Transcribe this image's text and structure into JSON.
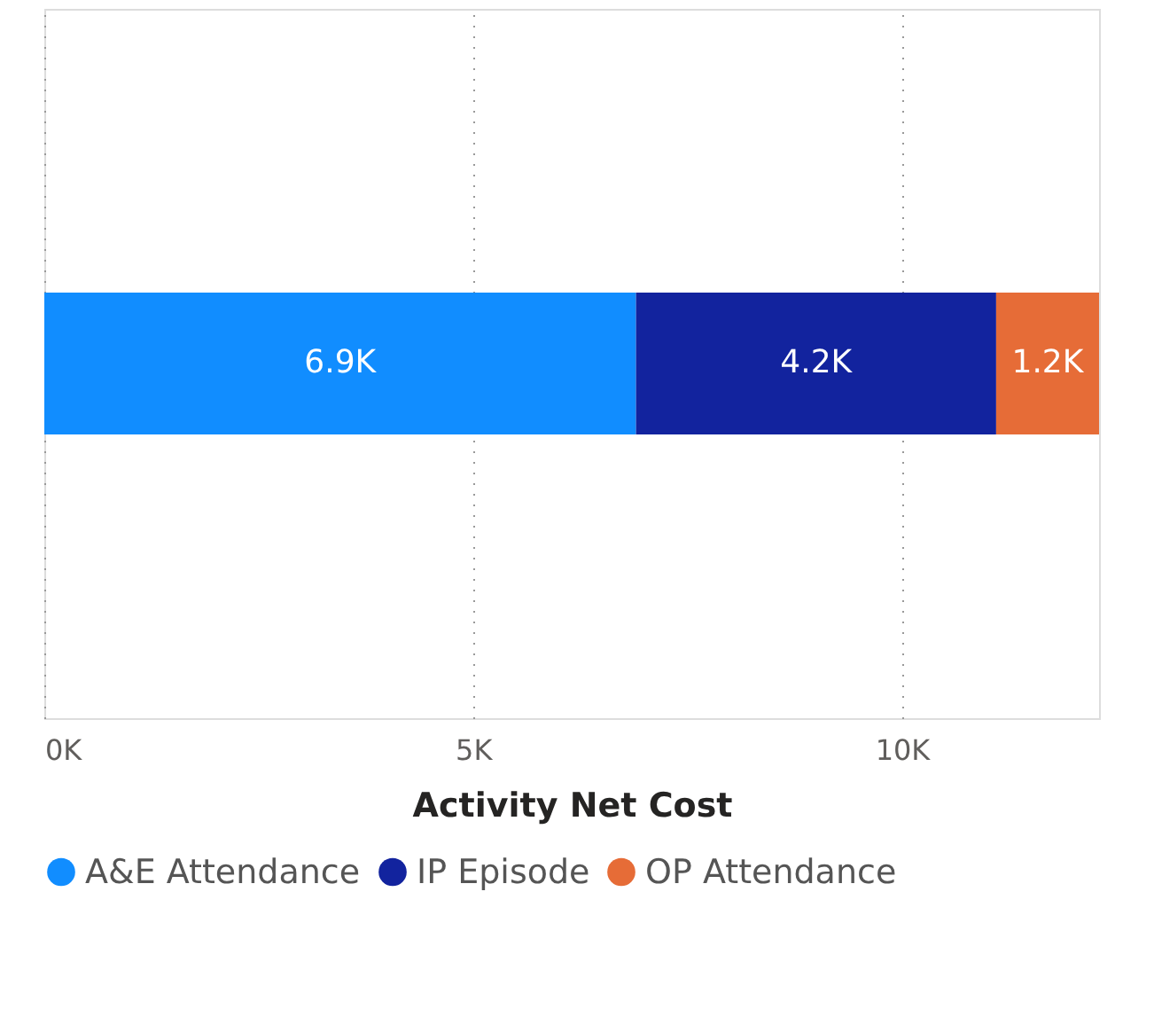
{
  "chart_data": {
    "type": "bar",
    "orientation": "horizontal",
    "stacked": true,
    "xlabel": "Activity Net Cost",
    "categories": [
      null
    ],
    "series": [
      {
        "name": "A&E Attendance",
        "color": "#118dff",
        "values": [
          6900
        ],
        "value_labels": [
          "6.9K"
        ]
      },
      {
        "name": "IP Episode",
        "color": "#12239e",
        "values": [
          4200
        ],
        "value_labels": [
          "4.2K"
        ]
      },
      {
        "name": "OP Attendance",
        "color": "#e66c37",
        "values": [
          1200
        ],
        "value_labels": [
          "1.2K"
        ]
      }
    ],
    "xlim": [
      0,
      12300
    ],
    "xticks": [
      {
        "value": 0,
        "label": "0K"
      },
      {
        "value": 5000,
        "label": "5K"
      },
      {
        "value": 10000,
        "label": "10K"
      }
    ],
    "grid": "x",
    "legend": "bottom",
    "tick_labels": "x"
  }
}
